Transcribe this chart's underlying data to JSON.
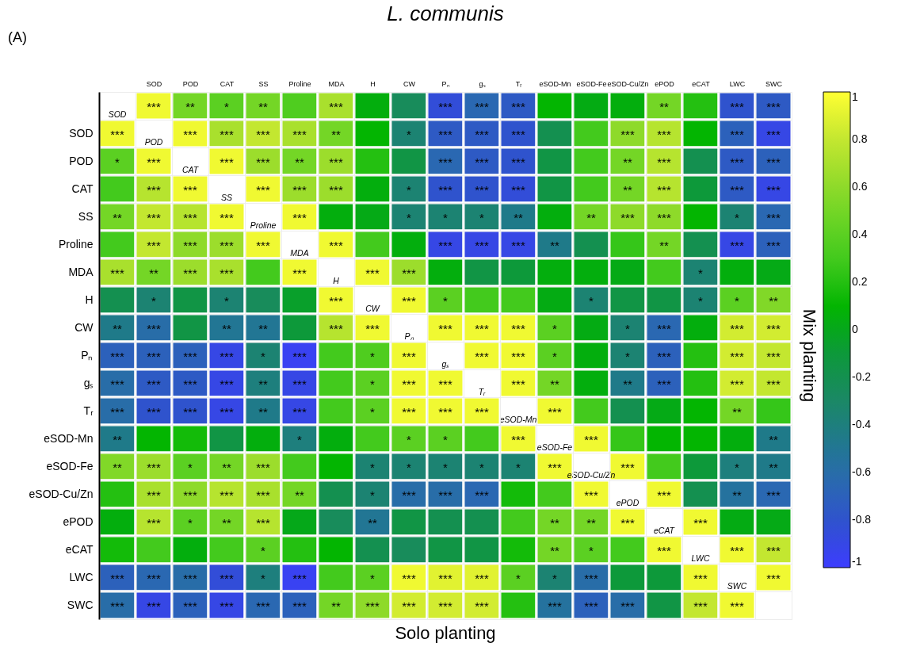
{
  "chart_data": {
    "type": "heatmap",
    "title": "L. communis",
    "xlabel": "Solo planting",
    "y2label": "Mix planting",
    "annotations": [
      "(A)"
    ],
    "categories": [
      null,
      "SOD",
      "POD",
      "CAT",
      "SS",
      "Proline",
      "MDA",
      "H",
      "CW",
      "Pₙ",
      "gₛ",
      "Tᵣ",
      "eSOD-Mn",
      "eSOD-Fe",
      "eSOD-Cu/Zn",
      "ePOD",
      "eCAT",
      "LWC",
      "SWC"
    ],
    "y_categories": [
      null,
      "SOD",
      "POD",
      "CAT",
      "SS",
      "Proline",
      "MDA",
      "H",
      "CW",
      "Pₙ",
      "gₛ",
      "Tᵣ",
      "eSOD-Mn",
      "eSOD-Fe",
      "eSOD-Cu/Zn",
      "ePOD",
      "eCAT",
      "LWC",
      "SWC"
    ],
    "cells": [
      [
        null,
        0.95,
        0.5,
        0.4,
        0.5,
        0.35,
        0.7,
        0.05,
        -0.25,
        -0.85,
        -0.65,
        -0.75,
        0.1,
        0.03,
        0.05,
        0.5,
        0.2,
        -0.8,
        -0.75
      ],
      [
        0.95,
        null,
        0.95,
        0.7,
        0.8,
        0.7,
        0.5,
        0.1,
        -0.35,
        -0.75,
        -0.75,
        -0.8,
        -0.2,
        0.3,
        0.6,
        0.75,
        0.1,
        -0.7,
        -0.9
      ],
      [
        0.4,
        0.95,
        null,
        0.95,
        0.65,
        0.5,
        0.65,
        0.2,
        -0.15,
        -0.65,
        -0.75,
        -0.8,
        -0.15,
        0.3,
        0.5,
        0.75,
        -0.2,
        -0.75,
        -0.7
      ],
      [
        0.3,
        0.75,
        0.95,
        null,
        0.95,
        0.65,
        0.65,
        0.05,
        -0.35,
        -0.8,
        -0.8,
        -0.85,
        -0.15,
        0.3,
        0.5,
        0.75,
        -0.1,
        -0.75,
        -0.9
      ],
      [
        0.5,
        0.8,
        0.75,
        0.95,
        null,
        0.95,
        0.05,
        0.02,
        -0.35,
        -0.35,
        -0.35,
        -0.45,
        0.05,
        0.5,
        0.6,
        0.6,
        0.1,
        -0.35,
        -0.65
      ],
      [
        0.3,
        0.8,
        0.6,
        0.65,
        0.95,
        null,
        0.95,
        0.3,
        0.05,
        -0.9,
        -0.9,
        -0.9,
        -0.45,
        -0.2,
        0.25,
        0.5,
        -0.2,
        -0.9,
        -0.7
      ],
      [
        0.7,
        0.5,
        0.65,
        0.7,
        0.3,
        0.95,
        null,
        0.95,
        0.65,
        0.05,
        -0.15,
        -0.1,
        0.05,
        0.05,
        0.02,
        0.3,
        -0.35,
        0.05,
        0.02
      ],
      [
        -0.2,
        -0.35,
        -0.15,
        -0.35,
        -0.25,
        -0.05,
        0.95,
        null,
        0.95,
        0.4,
        0.3,
        0.3,
        0.03,
        -0.35,
        -0.15,
        -0.15,
        -0.35,
        0.4,
        0.55
      ],
      [
        -0.45,
        -0.6,
        -0.15,
        -0.5,
        -0.5,
        -0.1,
        0.75,
        0.95,
        null,
        0.95,
        0.95,
        0.95,
        0.4,
        0.03,
        -0.35,
        -0.65,
        0.05,
        0.85,
        0.85
      ],
      [
        -0.7,
        -0.7,
        -0.7,
        -0.9,
        -0.35,
        -0.95,
        0.3,
        0.35,
        0.95,
        null,
        0.95,
        0.95,
        0.4,
        0.05,
        -0.35,
        -0.7,
        0.2,
        0.85,
        0.8
      ],
      [
        -0.6,
        -0.75,
        -0.75,
        -0.9,
        -0.4,
        -0.9,
        0.3,
        0.4,
        0.95,
        0.95,
        null,
        0.95,
        0.5,
        0.05,
        -0.45,
        -0.7,
        0.2,
        0.85,
        0.8
      ],
      [
        -0.6,
        -0.8,
        -0.8,
        -0.9,
        -0.45,
        -0.9,
        0.3,
        0.4,
        0.95,
        0.95,
        0.95,
        null,
        0.95,
        0.3,
        -0.2,
        0.02,
        0.1,
        0.5,
        0.25
      ],
      [
        -0.45,
        0.1,
        0.15,
        -0.15,
        0.05,
        -0.4,
        0.05,
        0.3,
        0.4,
        0.4,
        0.3,
        0.95,
        null,
        0.95,
        0.25,
        0.1,
        0.1,
        0.05,
        -0.45
      ],
      [
        0.55,
        0.65,
        0.4,
        0.5,
        0.65,
        0.3,
        0.1,
        -0.35,
        -0.35,
        -0.35,
        -0.35,
        -0.35,
        0.95,
        null,
        0.95,
        0.3,
        -0.1,
        -0.4,
        -0.45
      ],
      [
        0.2,
        0.7,
        0.6,
        0.75,
        0.7,
        0.5,
        -0.2,
        -0.35,
        -0.6,
        -0.6,
        -0.65,
        0.15,
        0.3,
        0.95,
        null,
        0.95,
        -0.2,
        -0.55,
        -0.65
      ],
      [
        0.05,
        0.75,
        0.4,
        0.5,
        0.75,
        0.01,
        -0.25,
        -0.5,
        -0.15,
        -0.2,
        -0.2,
        0.3,
        0.5,
        0.5,
        0.95,
        null,
        0.95,
        0.03,
        0.02
      ],
      [
        0.15,
        0.3,
        0.05,
        0.3,
        0.4,
        0.2,
        0.1,
        -0.2,
        -0.25,
        -0.15,
        -0.15,
        0.15,
        0.5,
        0.4,
        0.3,
        0.95,
        null,
        0.95,
        0.8
      ],
      [
        -0.7,
        -0.65,
        -0.6,
        -0.85,
        -0.4,
        -0.95,
        0.3,
        0.4,
        0.95,
        0.9,
        0.9,
        0.4,
        -0.35,
        -0.6,
        -0.1,
        -0.1,
        0.95,
        null,
        0.95
      ],
      [
        -0.6,
        -0.9,
        -0.7,
        -0.9,
        -0.65,
        -0.7,
        0.5,
        0.6,
        0.85,
        0.85,
        0.85,
        0.2,
        -0.55,
        -0.7,
        -0.6,
        -0.15,
        0.8,
        0.95,
        null
      ]
    ],
    "cell_labels": [
      [
        "SOD",
        "***",
        "**",
        "*",
        "**",
        null,
        "***",
        null,
        null,
        "***",
        "***",
        "***",
        null,
        null,
        null,
        "**",
        null,
        "***",
        "***"
      ],
      [
        "***",
        "POD",
        "***",
        "***",
        "***",
        "***",
        "**",
        null,
        "*",
        "***",
        "***",
        "***",
        null,
        null,
        "***",
        "***",
        null,
        "***",
        "***"
      ],
      [
        "*",
        "***",
        "CAT",
        "***",
        "***",
        "**",
        "***",
        null,
        null,
        "***",
        "***",
        "***",
        null,
        null,
        "**",
        "***",
        null,
        "***",
        "***"
      ],
      [
        null,
        "***",
        "***",
        "SS",
        "***",
        "***",
        "***",
        null,
        "*",
        "***",
        "***",
        "***",
        null,
        null,
        "**",
        "***",
        null,
        "***",
        "***"
      ],
      [
        "**",
        "***",
        "***",
        "***",
        "Proline",
        "***",
        null,
        null,
        "*",
        "*",
        "*",
        "**",
        null,
        "**",
        "***",
        "***",
        null,
        "*",
        "***"
      ],
      [
        null,
        "***",
        "***",
        "***",
        "***",
        "MDA",
        "***",
        null,
        null,
        "***",
        "***",
        "***",
        "**",
        null,
        null,
        "**",
        null,
        "***",
        "***"
      ],
      [
        "***",
        "**",
        "***",
        "***",
        null,
        "***",
        "H",
        "***",
        "***",
        null,
        null,
        null,
        null,
        null,
        null,
        null,
        "*",
        null,
        null
      ],
      [
        null,
        "*",
        null,
        "*",
        null,
        null,
        "***",
        "CW",
        "***",
        "*",
        null,
        null,
        null,
        "*",
        null,
        null,
        "*",
        "*",
        "**"
      ],
      [
        "**",
        "***",
        null,
        "**",
        "**",
        null,
        "***",
        "***",
        "Pₙ",
        "***",
        "***",
        "***",
        "*",
        null,
        "*",
        "***",
        null,
        "***",
        "***"
      ],
      [
        "***",
        "***",
        "***",
        "***",
        "*",
        "***",
        null,
        "*",
        "***",
        "gₛ",
        "***",
        "***",
        "*",
        null,
        "*",
        "***",
        null,
        "***",
        "***"
      ],
      [
        "***",
        "***",
        "***",
        "***",
        "**",
        "***",
        null,
        "*",
        "***",
        "***",
        "Tᵣ",
        "***",
        "**",
        null,
        "**",
        "***",
        null,
        "***",
        "***"
      ],
      [
        "***",
        "***",
        "***",
        "***",
        "**",
        "***",
        null,
        "*",
        "***",
        "***",
        "***",
        "eSOD-Mn",
        "***",
        null,
        null,
        null,
        null,
        "**",
        null
      ],
      [
        "**",
        null,
        null,
        null,
        null,
        "*",
        null,
        null,
        "*",
        "*",
        null,
        "***",
        "eSOD-Fe",
        "***",
        null,
        null,
        null,
        null,
        "**"
      ],
      [
        "**",
        "***",
        "*",
        "**",
        "***",
        null,
        null,
        "*",
        "*",
        "*",
        "*",
        "*",
        "***",
        "eSOD-Cu/Zn",
        "***",
        null,
        null,
        "*",
        "**"
      ],
      [
        null,
        "***",
        "***",
        "***",
        "***",
        "**",
        null,
        "*",
        "***",
        "***",
        "***",
        null,
        null,
        "***",
        "ePOD",
        "***",
        null,
        "**",
        "***"
      ],
      [
        null,
        "***",
        "*",
        "**",
        "***",
        null,
        null,
        "**",
        null,
        null,
        null,
        null,
        "**",
        "**",
        "***",
        "eCAT",
        "***",
        null,
        null
      ],
      [
        null,
        null,
        null,
        null,
        "*",
        null,
        null,
        null,
        null,
        null,
        null,
        null,
        "**",
        "*",
        null,
        "***",
        "LWC",
        "***",
        "***"
      ],
      [
        "***",
        "***",
        "***",
        "***",
        "*",
        "***",
        null,
        "*",
        "***",
        "***",
        "***",
        "*",
        "*",
        "***",
        null,
        null,
        "***",
        "SWC",
        "***"
      ],
      [
        "***",
        "***",
        "***",
        "***",
        "***",
        "***",
        "**",
        "***",
        "***",
        "***",
        "***",
        null,
        "***",
        "***",
        "***",
        null,
        "***",
        "***",
        null
      ]
    ],
    "clim": [
      -1,
      1
    ],
    "cticks": [
      -1,
      -0.8,
      -0.6,
      -0.4,
      -0.2,
      0,
      0.2,
      0.4,
      0.6,
      0.8,
      1
    ],
    "grid": true
  }
}
